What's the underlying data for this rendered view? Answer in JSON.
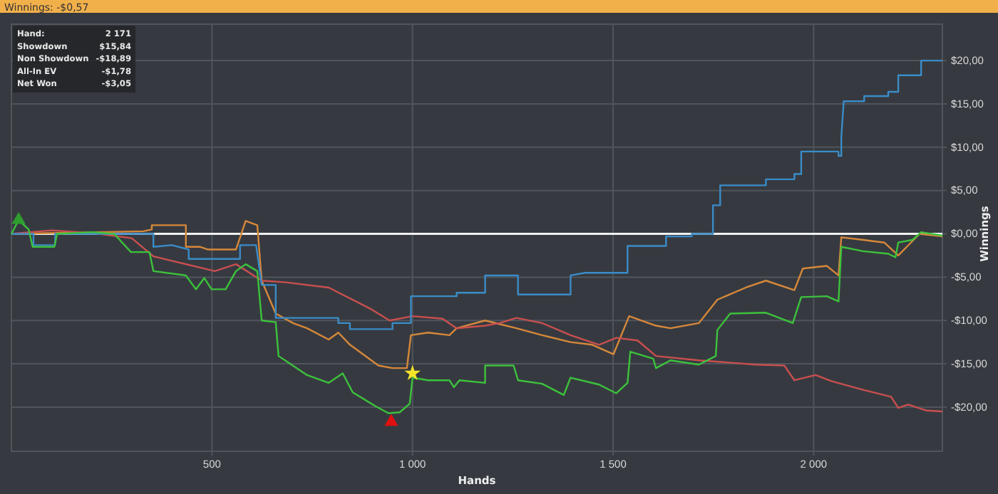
{
  "chart_data": {
    "type": "line",
    "title": "Winnings: -$0,57",
    "xlabel": "Hands",
    "ylabel": "Winnings",
    "annotations": [
      "Hand:",
      "2 171",
      "Showdown",
      "$15,84",
      "Non Showdown",
      "-$18,89",
      "All-In EV",
      "-$1,78",
      "Net Won",
      "-$3,05"
    ],
    "xlim": [
      0,
      2321
    ],
    "ylim": [
      -25.1,
      24.2
    ],
    "xticks": [
      500,
      {
        "value": 1000,
        "label": "1 000"
      },
      {
        "value": 1500,
        "label": "1 500"
      },
      {
        "value": 2000,
        "label": "2 000"
      }
    ],
    "yticks": [
      {
        "value": 20,
        "label": "$20,00"
      },
      {
        "value": 15,
        "label": "$15,00"
      },
      {
        "value": 10,
        "label": "$10,00"
      },
      {
        "value": 5,
        "label": "$5,00"
      },
      {
        "value": 0,
        "label": "$0,00"
      },
      {
        "value": -5,
        "label": "-$5,00"
      },
      {
        "value": -10,
        "label": "-$10,00"
      },
      {
        "value": -15,
        "label": "-$15,00"
      },
      {
        "value": -20,
        "label": "-$20,00"
      }
    ],
    "grid": true,
    "line_style": "solid",
    "ref_lines": [
      {
        "axis": "y",
        "value": 0,
        "label": null,
        "color": "#f0f0f0"
      }
    ],
    "series": [
      {
        "type": "line",
        "color": "#d7883a",
        "x": [
          0,
          329,
          350,
          350,
          435,
          435,
          471,
          489,
          560,
          584,
          613,
          624,
          659,
          702,
          737,
          791,
          815,
          844,
          915,
          950,
          986,
          996,
          1039,
          1092,
          1110,
          1181,
          1259,
          1323,
          1394,
          1448,
          1501,
          1540,
          1607,
          1643,
          1714,
          1760,
          1831,
          1881,
          1952,
          1973,
          2033,
          2062,
          2069,
          2123,
          2176,
          2211,
          2264,
          2321
        ],
        "values": [
          0,
          0.3,
          0.5,
          1,
          1,
          -1.5,
          -1.5,
          -1.8,
          -1.8,
          1.5,
          1,
          -5.4,
          -9.2,
          -10.3,
          -10.9,
          -12.2,
          -11.4,
          -12.8,
          -15.2,
          -15.5,
          -15.5,
          -11.7,
          -11.4,
          -11.7,
          -10.9,
          -10,
          -10.9,
          -11.7,
          -12.5,
          -12.8,
          -13.9,
          -9.5,
          -10.6,
          -10.9,
          -10.3,
          -7.6,
          -6.2,
          -5.4,
          -6.5,
          -4,
          -3.7,
          -4.8,
          -0.4,
          -0.7,
          -1,
          -2.5,
          0,
          -0.3
        ]
      },
      {
        "type": "line",
        "color": "#c94f4f",
        "x": [
          0,
          100,
          200,
          300,
          354,
          507,
          560,
          624,
          684,
          791,
          897,
          943,
          1000,
          1075,
          1110,
          1181,
          1217,
          1259,
          1323,
          1394,
          1465,
          1508,
          1561,
          1607,
          1714,
          1856,
          1927,
          1952,
          2005,
          2044,
          2123,
          2193,
          2211,
          2236,
          2282,
          2321
        ],
        "values": [
          0,
          0.4,
          0.1,
          -0.5,
          -2.6,
          -4.3,
          -3.5,
          -5.4,
          -5.6,
          -6.2,
          -8.7,
          -10,
          -9.5,
          -9.8,
          -10.9,
          -10.6,
          -10.3,
          -9.7,
          -10.3,
          -11.7,
          -12.8,
          -12,
          -12.3,
          -14.1,
          -14.6,
          -15.1,
          -15.2,
          -16.9,
          -16.3,
          -17,
          -18,
          -18.8,
          -20.1,
          -19.7,
          -20.4,
          -20.5
        ]
      },
      {
        "type": "line",
        "color": "#3a8cc8",
        "x": [
          0,
          55,
          55,
          109,
          109,
          354,
          354,
          400,
          442,
          442,
          570,
          570,
          610,
          624,
          659,
          659,
          815,
          815,
          844,
          844,
          950,
          950,
          996,
          996,
          1110,
          1110,
          1181,
          1181,
          1263,
          1263,
          1394,
          1394,
          1430,
          1536,
          1536,
          1632,
          1632,
          1696,
          1696,
          1749,
          1749,
          1767,
          1767,
          1881,
          1881,
          1952,
          1952,
          1969,
          1969,
          2062,
          2062,
          2069,
          2069,
          2075,
          2126,
          2126,
          2186,
          2186,
          2211,
          2211,
          2268,
          2268,
          2321
        ],
        "values": [
          0,
          0,
          -1.3,
          -1.3,
          0,
          0,
          -1.5,
          -1.3,
          -1.8,
          -2.9,
          -2.9,
          -1.3,
          -1.3,
          -5.9,
          -5.9,
          -9.7,
          -9.7,
          -10.3,
          -10.3,
          -11,
          -11,
          -10.3,
          -10.3,
          -7.2,
          -7.2,
          -6.8,
          -6.8,
          -4.8,
          -4.8,
          -7,
          -7,
          -4.8,
          -4.5,
          -4.5,
          -1.4,
          -1.4,
          -0.3,
          -0.3,
          0,
          0,
          3.3,
          3.3,
          5.6,
          5.6,
          6.3,
          6.3,
          6.9,
          6.9,
          9.5,
          9.5,
          9,
          9,
          11.2,
          15.3,
          15.3,
          15.9,
          15.9,
          16.4,
          16.4,
          18.3,
          18.3,
          20,
          20
        ]
      },
      {
        "type": "line",
        "color": "#3cc23c",
        "x": [
          0,
          18,
          43,
          53,
          107,
          114,
          202,
          256,
          298,
          302,
          344,
          354,
          435,
          460,
          481,
          499,
          534,
          560,
          584,
          613,
          624,
          659,
          666,
          737,
          791,
          826,
          851,
          908,
          940,
          968,
          993,
          1000,
          1039,
          1092,
          1103,
          1117,
          1181,
          1181,
          1252,
          1263,
          1323,
          1377,
          1394,
          1465,
          1508,
          1536,
          1543,
          1600,
          1607,
          1643,
          1714,
          1756,
          1760,
          1792,
          1881,
          1948,
          1969,
          2033,
          2062,
          2069,
          2123,
          2186,
          2204,
          2211,
          2246,
          2268,
          2321
        ],
        "values": [
          0,
          1.6,
          0.5,
          -1.5,
          -1.5,
          0,
          0.2,
          0,
          -2.1,
          -2.1,
          -2.1,
          -4.3,
          -4.8,
          -6.4,
          -5.1,
          -6.4,
          -6.4,
          -4.3,
          -3.5,
          -4.3,
          -10,
          -10.2,
          -14.1,
          -16.3,
          -17.2,
          -16.1,
          -18.3,
          -19.9,
          -20.7,
          -20.6,
          -19.6,
          -16.6,
          -16.9,
          -16.9,
          -17.7,
          -16.9,
          -17.2,
          -15.2,
          -15.2,
          -16.9,
          -17.3,
          -18.6,
          -16.6,
          -17.4,
          -18.4,
          -17.2,
          -13.6,
          -14.4,
          -15.5,
          -14.6,
          -15.1,
          -14.1,
          -11.1,
          -9.2,
          -9.1,
          -10.3,
          -7.3,
          -7.2,
          -7.8,
          -1.5,
          -2,
          -2.3,
          -2.7,
          -1,
          -0.7,
          0.2,
          -0.2
        ]
      },
      {
        "type": "scatter",
        "color": "#2e9e2e",
        "marker": "triangle",
        "x": [
          18
        ],
        "values": [
          1.6
        ]
      },
      {
        "type": "scatter",
        "color": "#e01010",
        "marker": "triangle",
        "x": [
          947
        ],
        "values": [
          -21.7
        ]
      },
      {
        "type": "scatter",
        "color": "#f5e52a",
        "marker": "star",
        "x": [
          1000
        ],
        "values": [
          -16.1
        ]
      }
    ]
  }
}
